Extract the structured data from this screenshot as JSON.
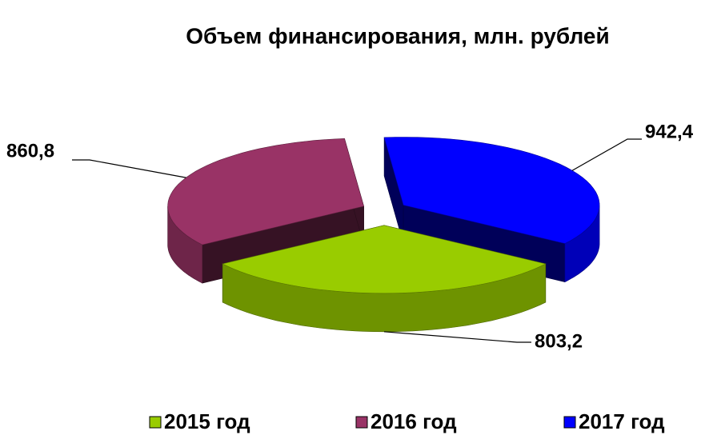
{
  "chart_data": {
    "type": "pie3d",
    "title": "Объем финансирования, млн. рублей",
    "categories": [
      "2015 год",
      "2016 год",
      "2017 год"
    ],
    "values": [
      803.2,
      860.8,
      942.4
    ],
    "value_labels": [
      "803,2",
      "860,8",
      "942,4"
    ],
    "colors": [
      "#99cc00",
      "#993366",
      "#0000ff"
    ],
    "legend": "bottom"
  }
}
